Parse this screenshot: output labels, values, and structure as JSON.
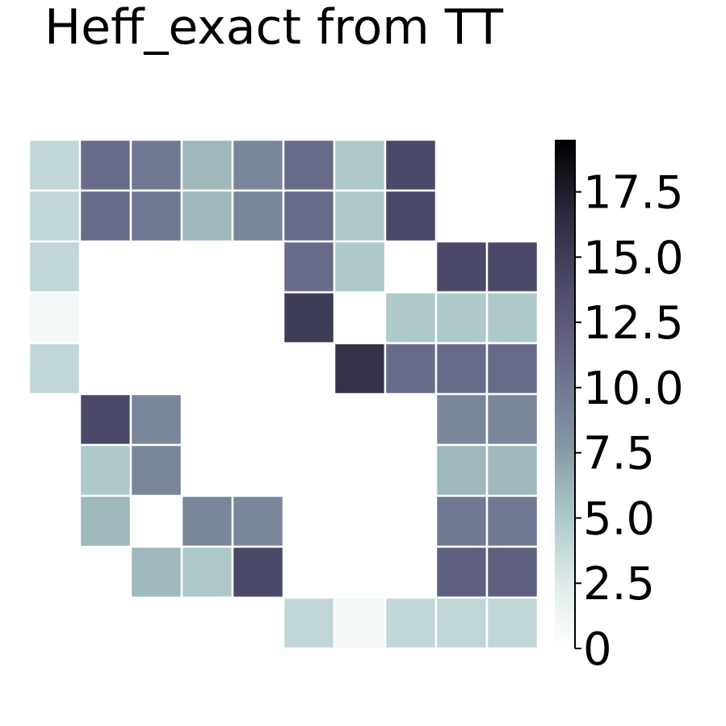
{
  "chart_data": {
    "type": "heatmap",
    "title": "Heff_exact from TT",
    "rows": 10,
    "cols": 10,
    "values": [
      [
        4,
        11,
        10,
        6,
        9,
        11,
        5,
        14,
        null,
        null
      ],
      [
        4,
        11,
        10,
        6,
        9,
        11,
        5,
        14,
        null,
        null
      ],
      [
        4,
        null,
        null,
        null,
        null,
        11,
        5,
        null,
        14,
        14
      ],
      [
        1,
        null,
        null,
        null,
        null,
        15,
        null,
        5,
        5,
        5
      ],
      [
        4,
        null,
        null,
        null,
        null,
        null,
        16,
        11,
        11,
        11
      ],
      [
        null,
        14,
        9,
        null,
        null,
        null,
        null,
        null,
        9,
        9
      ],
      [
        null,
        5,
        9,
        null,
        null,
        null,
        null,
        null,
        6,
        6
      ],
      [
        null,
        6,
        null,
        9,
        9,
        null,
        null,
        null,
        10,
        10
      ],
      [
        null,
        null,
        6,
        5,
        14,
        null,
        null,
        null,
        12,
        12
      ],
      [
        null,
        null,
        null,
        null,
        null,
        4,
        1,
        4,
        4,
        4
      ]
    ],
    "colorbar": {
      "min": 0,
      "max": 19.5,
      "ticks": [
        0,
        2.5,
        5.0,
        7.5,
        10.0,
        12.5,
        15.0,
        17.5
      ],
      "tick_labels": [
        "0",
        "2.5",
        "5.0",
        "7.5",
        "10.0",
        "12.5",
        "15.0",
        "17.5"
      ]
    },
    "colormap": "bone_r",
    "grid": false
  }
}
